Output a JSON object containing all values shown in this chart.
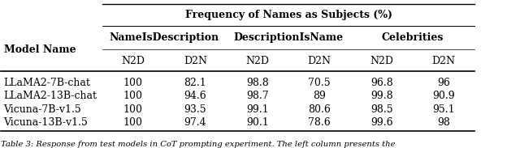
{
  "title": "Frequency of Names as Subjects (%)",
  "col_groups": [
    "NameIsDescription",
    "DescriptionIsName",
    "Celebrities"
  ],
  "sub_cols": [
    "N2D",
    "D2N"
  ],
  "row_labels": [
    "LLaMA2-7B-chat",
    "LLaMA2-13B-chat",
    "Vicuna-7B-v1.5",
    "Vicuna-13B-v1.5"
  ],
  "data": [
    [
      100,
      82.1,
      98.8,
      70.5,
      96.8,
      96.0
    ],
    [
      100,
      94.6,
      98.7,
      89.0,
      99.8,
      90.9
    ],
    [
      100,
      93.5,
      99.1,
      80.6,
      98.5,
      95.1
    ],
    [
      100,
      97.4,
      90.1,
      78.6,
      99.6,
      98.0
    ]
  ],
  "caption": "Table 3: Response from test models in CoT prompting experiment. The left column presents the",
  "model_name_label": "Model Name",
  "bg_color": "#ffffff",
  "line_color": "#000000",
  "font_size": 9.0,
  "caption_font_size": 7.2
}
